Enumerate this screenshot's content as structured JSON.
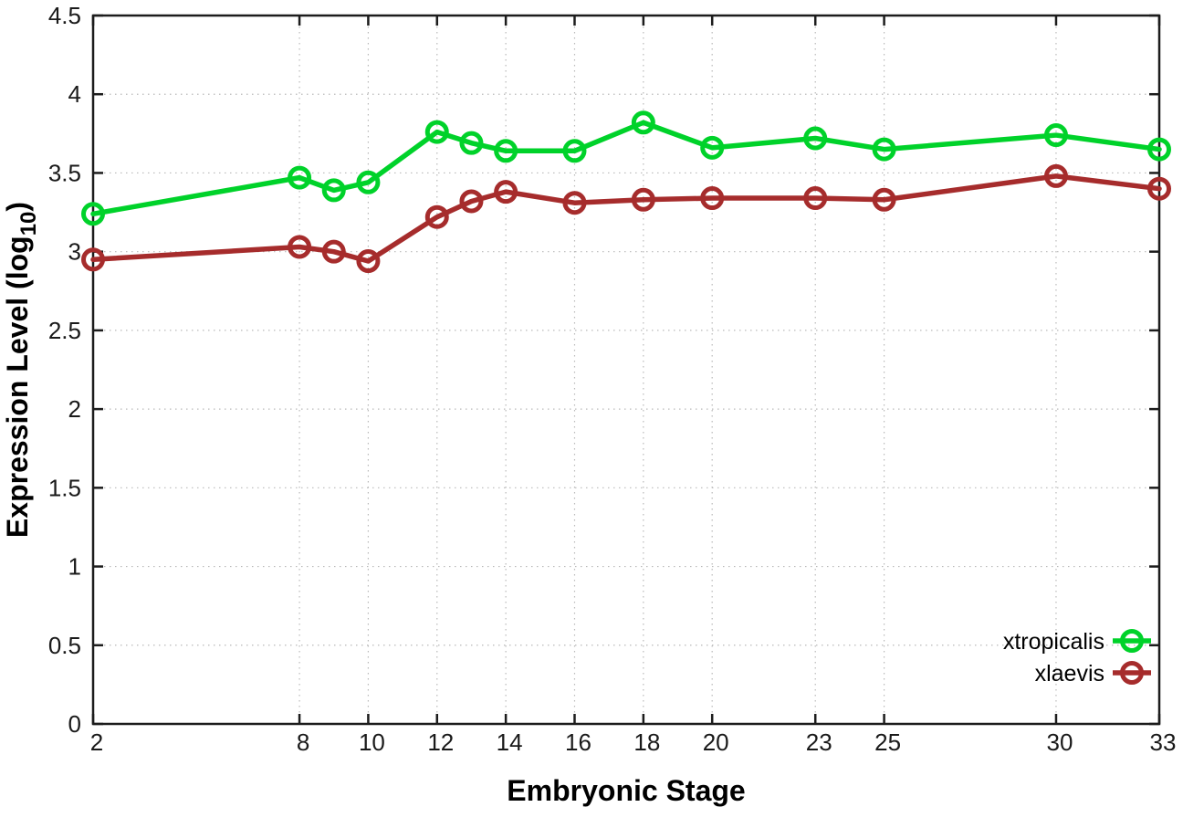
{
  "figure": {
    "background": "#ffffff"
  },
  "chart_data": {
    "type": "line",
    "title": "",
    "xlabel": "Embryonic Stage",
    "ylabel": "Expression Level (log10)",
    "ylabel_parts": {
      "main": "Expression Level (log",
      "sub": "10",
      "close": ")"
    },
    "x": [
      2,
      8,
      9,
      10,
      12,
      13,
      14,
      16,
      18,
      20,
      23,
      25,
      30,
      33
    ],
    "series": [
      {
        "name": "xtropicalis",
        "color": "#00d22a",
        "marker": "open-circle",
        "values": [
          3.24,
          3.47,
          3.39,
          3.44,
          3.76,
          3.69,
          3.64,
          3.64,
          3.82,
          3.66,
          3.72,
          3.65,
          3.74,
          3.65
        ]
      },
      {
        "name": "xlaevis",
        "color": "#a62c2c",
        "marker": "open-circle",
        "values": [
          2.95,
          3.03,
          3.0,
          2.94,
          3.22,
          3.32,
          3.38,
          3.31,
          3.33,
          3.34,
          3.34,
          3.33,
          3.48,
          3.4
        ]
      }
    ],
    "xlim": [
      2,
      33
    ],
    "ylim": [
      0,
      4.5
    ],
    "x_ticks": [
      2,
      8,
      10,
      12,
      14,
      16,
      18,
      20,
      23,
      25,
      30,
      33
    ],
    "x_tick_labels": [
      "2",
      "8",
      "10",
      "12",
      "14",
      "16",
      "18",
      "20",
      "23",
      "25",
      "30",
      "33"
    ],
    "y_ticks": [
      0,
      0.5,
      1,
      1.5,
      2,
      2.5,
      3,
      3.5,
      4,
      4.5
    ],
    "y_tick_labels": [
      "0",
      "0.5",
      "1",
      "1.5",
      "2",
      "2.5",
      "3",
      "3.5",
      "4",
      "4.5"
    ],
    "grid": true,
    "legend": {
      "position": "inside-bottom-right",
      "entries": [
        "xtropicalis",
        "xlaevis"
      ]
    },
    "colors": {
      "grid": "#b9b9b9",
      "border": "#1c1c1c",
      "tick_text": "#1a1a1a",
      "title_text": "#000000"
    }
  }
}
